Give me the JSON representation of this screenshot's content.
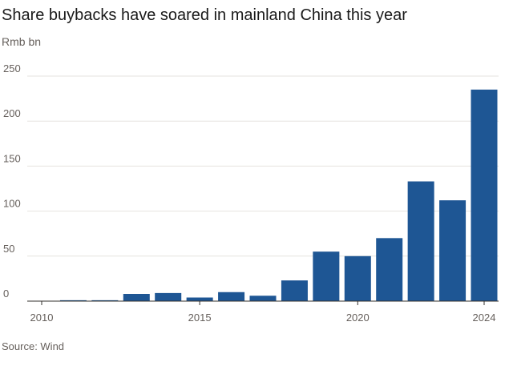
{
  "chart_data": {
    "type": "bar",
    "title": "Share buybacks have soared in mainland China this year",
    "subtitle": "Rmb bn",
    "source": "Source: Wind",
    "x": [
      2010,
      2011,
      2012,
      2013,
      2014,
      2015,
      2016,
      2017,
      2018,
      2019,
      2020,
      2021,
      2022,
      2023,
      2024
    ],
    "values": [
      0.3,
      1,
      1,
      8,
      9,
      4,
      10,
      6,
      23,
      55,
      50,
      70,
      133,
      112,
      235
    ],
    "x_tick_labels": [
      "2010",
      "2015",
      "2020",
      "2024"
    ],
    "y_ticks": [
      0,
      50,
      100,
      150,
      200,
      250
    ],
    "ylim": [
      0,
      258
    ],
    "grid": true,
    "bar_color": "#1e5694"
  }
}
